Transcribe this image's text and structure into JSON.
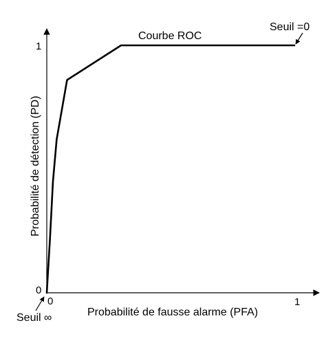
{
  "chart_data": {
    "type": "line",
    "title": "",
    "xlabel": "Probabilité de fausse alarme (PFA)",
    "ylabel": "Probabilité de détection (PD)",
    "xlim": [
      0,
      1
    ],
    "ylim": [
      0,
      1
    ],
    "x_ticks": [
      "0",
      "1"
    ],
    "y_ticks": [
      "0",
      "1"
    ],
    "grid": false,
    "series": [
      {
        "name": "Courbe ROC",
        "x": [
          0,
          0.013,
          0.025,
          0.04,
          0.082,
          0.3,
          1
        ],
        "y": [
          0,
          0.22,
          0.45,
          0.62,
          0.86,
          1,
          1
        ]
      }
    ],
    "annotations": [
      {
        "id": "seuil-zero",
        "text": "Seuil =0"
      },
      {
        "id": "seuil-infini",
        "text": "Seuil ∞"
      }
    ]
  }
}
